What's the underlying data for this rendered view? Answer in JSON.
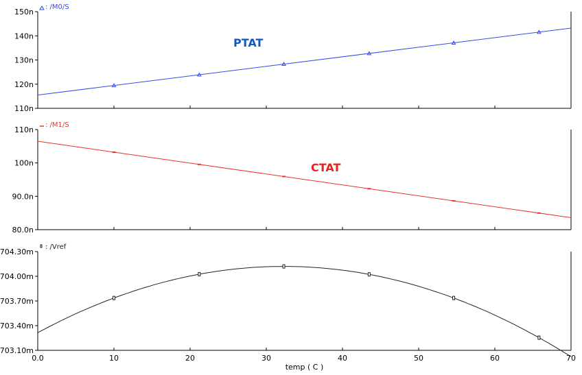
{
  "chart_data": [
    {
      "type": "line",
      "legend_marker": "triangle",
      "legend_label": ": /M0/S",
      "color": "#3a46e8",
      "annotation": "PTAT",
      "annotation_color": "#1557c0",
      "ytick_labels": [
        "110n",
        "120n",
        "130n",
        "140n",
        "150n"
      ],
      "ytick_values": [
        110,
        120,
        130,
        140,
        150
      ],
      "ylim": [
        110,
        150
      ],
      "unit": "n",
      "x": [
        0,
        70
      ],
      "values": [
        115.5,
        143.2
      ],
      "marker_x": [
        10,
        21.2,
        32.3,
        43.5,
        54.6,
        65.8
      ]
    },
    {
      "type": "line",
      "legend_marker": "dash",
      "legend_label": ": /M1/S",
      "color": "#e8312a",
      "annotation": "CTAT",
      "annotation_color": "#e8231c",
      "ytick_labels": [
        "80.0n",
        "90.0n",
        "100n",
        "110n"
      ],
      "ytick_values": [
        80,
        90,
        100,
        110
      ],
      "ylim": [
        80,
        110
      ],
      "unit": "n",
      "x": [
        0,
        70
      ],
      "values": [
        106.5,
        83.6
      ],
      "marker_x": [
        10,
        21.2,
        32.3,
        43.5,
        54.6,
        65.8
      ]
    },
    {
      "type": "line",
      "legend_marker": "square",
      "legend_label": ": /Vref",
      "color": "#222222",
      "annotation": "",
      "ytick_labels": [
        "703.10m",
        "703.40m",
        "703.70m",
        "704.00m",
        "704.30m"
      ],
      "ytick_values": [
        703.1,
        703.4,
        703.7,
        704.0,
        704.3
      ],
      "ylim": [
        703.1,
        704.3
      ],
      "unit": "m",
      "vertex_x": 32.3,
      "vertex_y": 704.12,
      "curvature": -0.000772,
      "marker_x": [
        10,
        21.2,
        32.3,
        43.5,
        54.6,
        65.8
      ]
    }
  ],
  "xaxis": {
    "label": "temp ( C )",
    "ticks": [
      0,
      10,
      20,
      30,
      40,
      50,
      60,
      70
    ],
    "tick_labels": [
      "0.0",
      "10",
      "20",
      "30",
      "40",
      "50",
      "60",
      "70"
    ],
    "xlim": [
      0,
      70
    ]
  }
}
